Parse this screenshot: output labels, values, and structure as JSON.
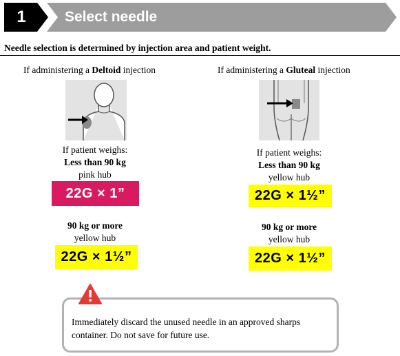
{
  "header": {
    "step_number": "1",
    "title": "Select needle"
  },
  "intro": "Needle selection is determined by injection area and patient weight.",
  "deltoid": {
    "prefix": "If administering a ",
    "site": "Deltoid",
    "suffix": " injection",
    "icon": "deltoid-illustration",
    "weighs_label": "If patient weighs:",
    "option1": {
      "weight": "Less than 90 kg",
      "hub": "pink hub",
      "needle": "22G × 1”",
      "color": "#d81b60"
    },
    "option2": {
      "weight": "90 kg or more",
      "hub": "yellow hub",
      "needle": "22G × 1½”",
      "color": "#ffff00"
    }
  },
  "gluteal": {
    "prefix": "If administering a ",
    "site": "Gluteal",
    "suffix": " injection",
    "icon": "gluteal-illustration",
    "weighs_label": "If patient weighs:",
    "option1": {
      "weight": "Less than 90 kg",
      "hub": "yellow hub",
      "needle": "22G × 1½”",
      "color": "#ffff00"
    },
    "option2": {
      "weight": "90 kg or more",
      "hub": "yellow hub",
      "needle": "22G × 1½”",
      "color": "#ffff00"
    }
  },
  "warning": {
    "icon": "warning-triangle-icon",
    "text": "Immediately discard the unused needle in an approved sharps container. Do not save for future use."
  }
}
